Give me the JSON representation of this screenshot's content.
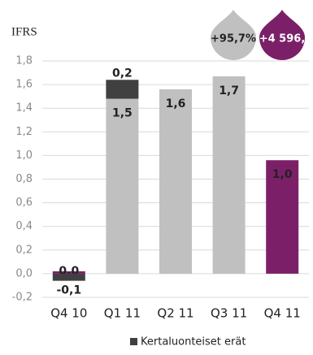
{
  "chart_data": {
    "type": "bar",
    "stacked": true,
    "axis_title": "IFRS",
    "categories": [
      "Q4 10",
      "Q1 11",
      "Q2 11",
      "Q3 11",
      "Q4 11"
    ],
    "series": [
      {
        "colors": [
          "#7b2068",
          "#c0c0c0",
          "#c0c0c0",
          "#c0c0c0",
          "#7b2068"
        ],
        "values": [
          0.02,
          1.48,
          1.56,
          1.67,
          0.96
        ],
        "value_labels": [
          "0,0",
          "1,5",
          "1,6",
          "1,7",
          "1,0"
        ]
      },
      {
        "name": "Kertaluonteiset erät",
        "color": "#404040",
        "values": [
          -0.06,
          0.16,
          null,
          null,
          null
        ],
        "value_labels": [
          "-0,1",
          "0,2",
          null,
          null,
          null
        ]
      }
    ],
    "ylim": [
      -0.2,
      1.8
    ],
    "yticks": [
      {
        "value": -0.2,
        "label": "-0,2"
      },
      {
        "value": 0,
        "label": "0,0"
      },
      {
        "value": 0.2,
        "label": "0,2"
      },
      {
        "value": 0.4,
        "label": "0,4"
      },
      {
        "value": 0.6,
        "label": "0,6"
      },
      {
        "value": 0.8,
        "label": "0,8"
      },
      {
        "value": 1.0,
        "label": "1,0"
      },
      {
        "value": 1.2,
        "label": "1,2"
      },
      {
        "value": 1.4,
        "label": "1,4"
      },
      {
        "value": 1.6,
        "label": "1,6"
      },
      {
        "value": 1.8,
        "label": "1,8"
      }
    ],
    "grid": true,
    "annotations": [
      {
        "text": "+95,7%",
        "color": "#c0c0c0"
      },
      {
        "text": "+4 596,",
        "color": "#7b2068"
      }
    ]
  }
}
